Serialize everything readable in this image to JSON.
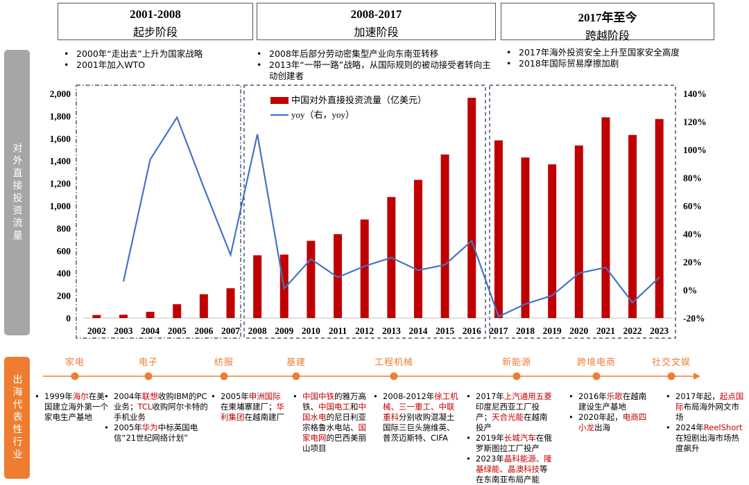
{
  "phases": [
    {
      "years": "2001-2008",
      "name": "起步阶段"
    },
    {
      "years": "2008-2017",
      "name": "加速阶段"
    },
    {
      "years": "2017年至今",
      "name": "跨越阶段"
    }
  ],
  "phase_notes": [
    [
      "2000年“走出去”上升为国家战略",
      "2001年加入WTO"
    ],
    [
      "2008年后部分劳动密集型产业向东南亚转移",
      "2013年“一带一路”战略，从国际规则的被动接受者转向主动创建者"
    ],
    [
      "2017年海外投资安全上升至国家安全高度",
      "2018年国际贸易摩擦加剧"
    ]
  ],
  "side_labels": {
    "top": "对外直接投资流量",
    "bottom": "出海代表性行业"
  },
  "chart_data": {
    "type": "bar",
    "categories": [
      "2002",
      "2003",
      "2004",
      "2005",
      "2006",
      "2007",
      "2008",
      "2009",
      "2010",
      "2011",
      "2012",
      "2013",
      "2014",
      "2015",
      "2016",
      "2017",
      "2018",
      "2019",
      "2020",
      "2021",
      "2022",
      "2023"
    ],
    "series": [
      {
        "name": "中国对外直接投资流量（亿美元）",
        "type": "bar",
        "color": "#c00000",
        "values": [
          27,
          29,
          55,
          123,
          212,
          265,
          559,
          565,
          688,
          747,
          878,
          1078,
          1231,
          1457,
          1962,
          1583,
          1430,
          1369,
          1537,
          1788,
          1631,
          1773
        ]
      },
      {
        "name": "yoy（右，yoy）",
        "type": "line",
        "color": "#4472c4",
        "axis": "right",
        "values": [
          null,
          6,
          93,
          123,
          73,
          25,
          111,
          1,
          22,
          9,
          17,
          23,
          14,
          18,
          35,
          -19,
          -10,
          -4,
          12,
          16,
          -9,
          9
        ]
      }
    ],
    "y_left": {
      "ticks": [
        "0",
        "200",
        "400",
        "600",
        "800",
        "1,000",
        "1,200",
        "1,400",
        "1,600",
        "1,800",
        "2,000"
      ],
      "lim": [
        0,
        2000
      ]
    },
    "y_right": {
      "ticks": [
        "-20%",
        "0%",
        "20%",
        "40%",
        "60%",
        "80%",
        "100%",
        "120%",
        "140%"
      ],
      "lim": [
        -20,
        140
      ]
    },
    "legend": "top-left inside plot"
  },
  "industries": [
    "家电",
    "电子",
    "纺服",
    "基建",
    "工程机械",
    "新能源",
    "跨境电商",
    "社交文娱"
  ],
  "examples": [
    [
      [
        {
          "t": "1999年"
        },
        {
          "t": "海尔",
          "h": 1
        },
        {
          "t": "在美国建立海外第一个家电生产基地"
        }
      ]
    ],
    [
      [
        {
          "t": "2004年"
        },
        {
          "t": "联想",
          "h": 1
        },
        {
          "t": "收购IBM的PC业务；"
        },
        {
          "t": "TCL",
          "h": 1
        },
        {
          "t": "收购阿尔卡特的手机业务"
        }
      ],
      [
        {
          "t": "2005年"
        },
        {
          "t": "华为",
          "h": 1
        },
        {
          "t": "中标英国电信“21世纪网络计划”"
        }
      ]
    ],
    [
      [
        {
          "t": "2005年"
        },
        {
          "t": "申洲国际",
          "h": 1
        },
        {
          "t": "在柬埔寨建厂；"
        },
        {
          "t": "华利集团",
          "h": 1
        },
        {
          "t": "在越南建厂"
        }
      ]
    ],
    [
      [
        {
          "t": "中国中铁",
          "h": 1
        },
        {
          "t": "的雅万高铁、"
        },
        {
          "t": "中国电工",
          "h": 1
        },
        {
          "t": "和"
        },
        {
          "t": "中国水电",
          "h": 1
        },
        {
          "t": "的尼日利亚宗格鲁水电站、"
        },
        {
          "t": "国家电网",
          "h": 1
        },
        {
          "t": "的巴西美丽山项目"
        }
      ]
    ],
    [
      [
        {
          "t": "2008-2012年"
        },
        {
          "t": "徐工机械、三一重工、中联重科",
          "h": 1
        },
        {
          "t": "分别收购混凝土国际三巨头施维英、普茨迈斯特、CIFA"
        }
      ]
    ],
    [
      [
        {
          "t": "2017年"
        },
        {
          "t": "上汽通用五菱",
          "h": 1
        },
        {
          "t": "印度尼西亚工厂投产；"
        },
        {
          "t": "天合光能",
          "h": 1
        },
        {
          "t": "在越南投产"
        }
      ],
      [
        {
          "t": "2019年"
        },
        {
          "t": "长城汽车",
          "h": 1
        },
        {
          "t": "在俄罗斯图拉工厂投产"
        }
      ],
      [
        {
          "t": "2023年"
        },
        {
          "t": "晶科能源、隆基绿能、晶澳科技",
          "h": 1
        },
        {
          "t": "等在东南亚布局产能"
        }
      ]
    ],
    [
      [
        {
          "t": "2016年"
        },
        {
          "t": "乐歌",
          "h": 1
        },
        {
          "t": "在越南建设生产基地"
        }
      ],
      [
        {
          "t": "2020年起，"
        },
        {
          "t": "电商四小龙",
          "h": 1
        },
        {
          "t": "出海"
        }
      ]
    ],
    [
      [
        {
          "t": "2017年起，"
        },
        {
          "t": "起点国际",
          "h": 1
        },
        {
          "t": "布局海外网文市场"
        }
      ],
      [
        {
          "t": "2024年"
        },
        {
          "t": "ReelShort",
          "h": 1
        },
        {
          "t": "在短剧出海市场热度飙升"
        }
      ]
    ]
  ]
}
